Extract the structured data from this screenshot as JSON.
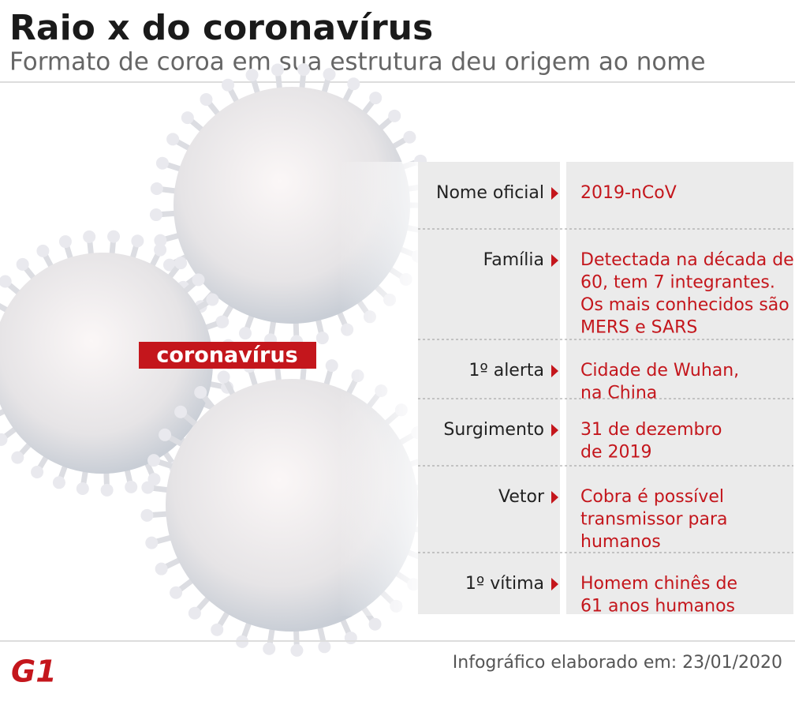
{
  "header": {
    "title": "Raio x do coronavírus",
    "subtitle": "Formato de coroa em sua estrutura deu origem ao nome"
  },
  "image_label": "coronavírus",
  "table": {
    "rows": [
      {
        "label": "Nome oficial",
        "lines": [
          "2019-nCoV"
        ]
      },
      {
        "label": "Família",
        "lines": [
          "Detectada na década de",
          "60, tem 7 integrantes.",
          "Os mais conhecidos são",
          "MERS e SARS"
        ]
      },
      {
        "label": "1º alerta",
        "lines": [
          "Cidade de Wuhan,",
          "na China"
        ]
      },
      {
        "label": "Surgimento",
        "lines": [
          "31 de dezembro",
          "de 2019"
        ]
      },
      {
        "label": "Vetor",
        "lines": [
          "Cobra é possível",
          "transmissor para",
          "humanos"
        ]
      },
      {
        "label": "1º vítima",
        "lines": [
          "Homem chinês de",
          "61 anos humanos"
        ]
      }
    ]
  },
  "footer": {
    "logo": "G1",
    "note": "Infográfico elaborado em: 23/01/2020"
  }
}
